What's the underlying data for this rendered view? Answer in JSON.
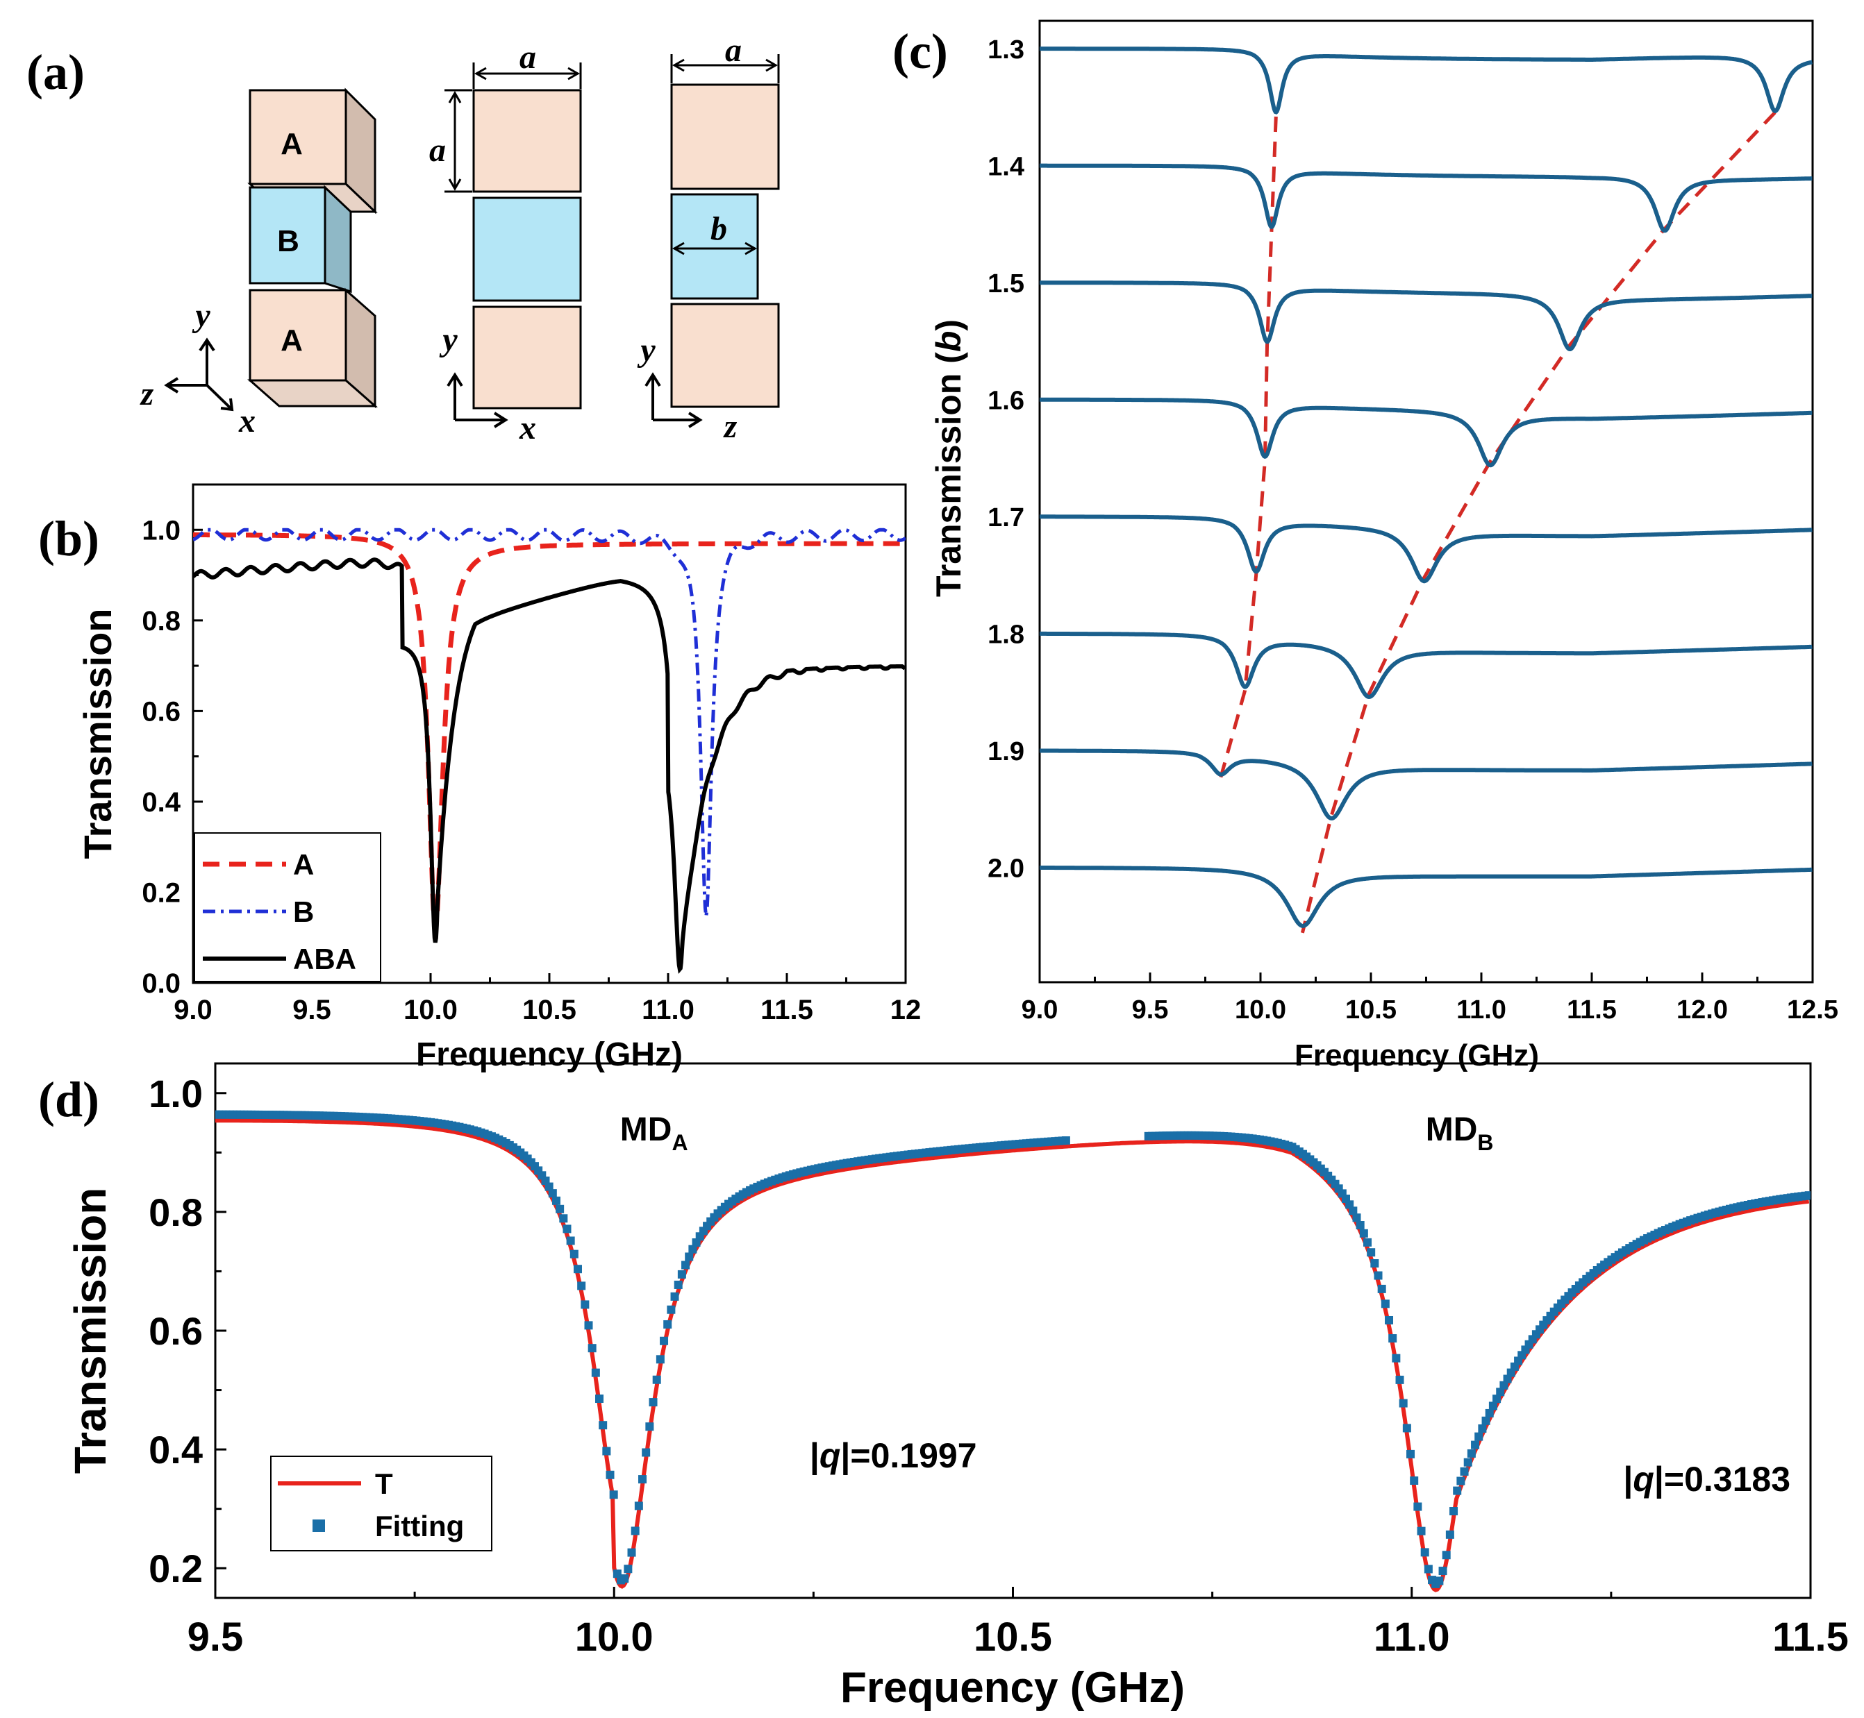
{
  "panels": {
    "a": {
      "label": "(a)",
      "block_letters": [
        "A",
        "B",
        "A"
      ],
      "dims": {
        "a": "a",
        "b": "b"
      },
      "axes_3d": {
        "y": "y",
        "z": "z",
        "x": "x"
      },
      "axes_xy": {
        "y": "y",
        "x": "x"
      },
      "axes_zy": {
        "y": "y",
        "z": "z"
      },
      "colors": {
        "A": "#f9dfcf",
        "B": "#b4e6f6",
        "A_side": "#d2bcae",
        "B_side": "#8fb8c6"
      }
    },
    "b": {
      "label": "(b)"
    },
    "c": {
      "label": "(c)"
    },
    "d": {
      "label": "(d)"
    }
  },
  "chart_data": [
    {
      "panel": "b",
      "type": "line",
      "xlabel": "Frequency (GHz)",
      "ylabel": "Transmission",
      "xlim": [
        9.0,
        12.0
      ],
      "ylim": [
        0.0,
        1.1
      ],
      "xticks": [
        "9.0",
        "9.5",
        "10.0",
        "10.5",
        "11.0",
        "11.5",
        "12"
      ],
      "yticks": [
        "0.0",
        "0.2",
        "0.4",
        "0.6",
        "0.8",
        "1.0"
      ],
      "legend": "bottom-left",
      "series": [
        {
          "name": "A",
          "color": "#e8231c",
          "style": "dashed",
          "dips": [
            {
              "f0": 10.02,
              "depth": 0.87,
              "width": 0.07,
              "base": 0.99
            }
          ]
        },
        {
          "name": "B",
          "color": "#1f2fd6",
          "style": "dash-dot",
          "dips": [
            {
              "f0": 11.16,
              "depth": 0.84,
              "width": 0.055,
              "base": 0.99
            }
          ]
        },
        {
          "name": "ABA",
          "color": "#000000",
          "style": "solid",
          "dips": [
            {
              "f0": 10.02,
              "min": 0.09
            },
            {
              "f0": 11.05,
              "min": 0.03
            }
          ],
          "levels": {
            "start": 0.9,
            "peak_before_first": 0.94,
            "peak_between": 0.9,
            "end": 0.7
          }
        }
      ]
    },
    {
      "panel": "c",
      "type": "line",
      "xlabel": "Frequency (GHz)",
      "ylabel": "Transmission (b)",
      "ylabel_main": "Transmission (",
      "ylabel_var": "b",
      "ylabel_close": ")",
      "xlim": [
        9.0,
        12.5
      ],
      "xticks": [
        "9.0",
        "9.5",
        "10.0",
        "10.5",
        "11.0",
        "11.5",
        "12.0",
        "12.5"
      ],
      "curve_color": "#1a5f8c",
      "guide_color": "#d32a25",
      "series": [
        {
          "b": "1.3",
          "dip1": 10.07,
          "dip2": 12.33
        },
        {
          "b": "1.4",
          "dip1": 10.05,
          "dip2": 11.83
        },
        {
          "b": "1.5",
          "dip1": 10.03,
          "dip2": 11.4
        },
        {
          "b": "1.6",
          "dip1": 10.02,
          "dip2": 11.04
        },
        {
          "b": "1.7",
          "dip1": 9.98,
          "dip2": 10.74
        },
        {
          "b": "1.8",
          "dip1": 9.93,
          "dip2": 10.49
        },
        {
          "b": "1.9",
          "dip1": 9.82,
          "dip2": 10.32
        },
        {
          "b": "2.0",
          "dip1": null,
          "dip2": 10.19
        }
      ]
    },
    {
      "panel": "d",
      "type": "line",
      "xlabel": "Frequency (GHz)",
      "ylabel": "Transmission",
      "xlim": [
        9.5,
        11.5
      ],
      "ylim": [
        0.15,
        1.05
      ],
      "xticks": [
        "9.5",
        "10.0",
        "10.5",
        "11.0",
        "11.5"
      ],
      "yticks": [
        "0.2",
        "0.4",
        "0.6",
        "0.8",
        "1.0"
      ],
      "legend": "bottom-left",
      "series": [
        {
          "name": "T",
          "color": "#e8231c",
          "style": "solid"
        },
        {
          "name": "Fitting",
          "color": "#1a6fa8",
          "style": "squares"
        }
      ],
      "dips": [
        {
          "f0": 10.01,
          "min": 0.28
        },
        {
          "f0": 11.03,
          "min": 0.21
        }
      ],
      "levels": {
        "start": 0.96,
        "peak1": 0.97,
        "plateau": 0.93,
        "peak2": 0.95,
        "end": 0.84
      },
      "annotations": [
        {
          "text": "MD",
          "sub": "A",
          "x": 10.05,
          "y": 0.92
        },
        {
          "text": "MD",
          "sub": "B",
          "x": 11.06,
          "y": 0.92
        },
        {
          "pre": "|",
          "var": "q",
          "post": "|=0.1997",
          "x": 10.35,
          "y": 0.37
        },
        {
          "pre": "|",
          "var": "q",
          "post": "|=0.3183",
          "x": 11.37,
          "y": 0.33
        }
      ]
    }
  ]
}
